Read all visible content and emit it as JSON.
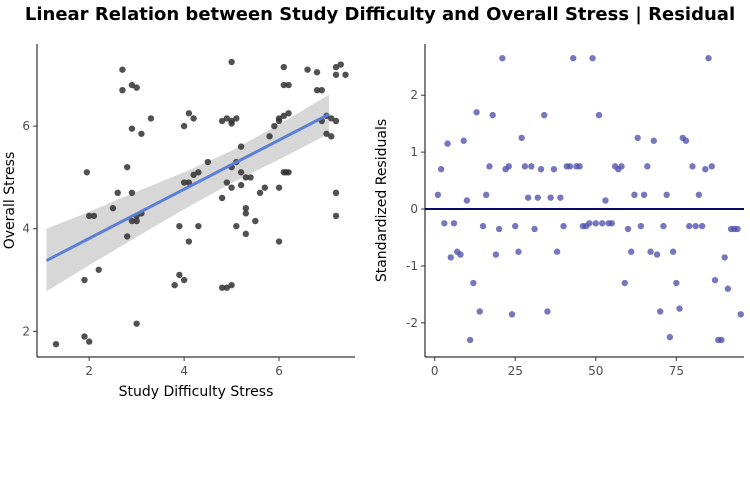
{
  "title": "Linear Relation between Study Difficulty and Overall Stress | Residual",
  "colors": {
    "points": "#333333",
    "fit_line": "#5b7fd6",
    "ci_band": "#d3d3d3",
    "residual_points": "#4a4aa8",
    "zero_line": "#0a0a6e",
    "axis": "#000000"
  },
  "chart_data": [
    {
      "type": "scatter",
      "xlabel": "Study Difficulty Stress",
      "ylabel": "Overall Stress",
      "xlim": [
        0.9,
        7.6
      ],
      "ylim": [
        1.5,
        7.6
      ],
      "xticks": [
        2,
        4,
        6
      ],
      "yticks": [
        2,
        4,
        6
      ],
      "grid": false,
      "points": [
        [
          1.3,
          1.75
        ],
        [
          1.9,
          1.9
        ],
        [
          2.0,
          1.8
        ],
        [
          1.9,
          3.0
        ],
        [
          2.2,
          3.2
        ],
        [
          2.0,
          4.25
        ],
        [
          2.1,
          4.25
        ],
        [
          1.95,
          5.1
        ],
        [
          2.5,
          4.4
        ],
        [
          2.6,
          4.7
        ],
        [
          3.0,
          4.15
        ],
        [
          2.8,
          3.85
        ],
        [
          2.9,
          4.15
        ],
        [
          3.0,
          4.25
        ],
        [
          3.1,
          4.3
        ],
        [
          2.9,
          4.7
        ],
        [
          2.8,
          5.2
        ],
        [
          2.7,
          6.7
        ],
        [
          2.9,
          6.8
        ],
        [
          3.0,
          6.75
        ],
        [
          2.7,
          7.1
        ],
        [
          2.9,
          5.95
        ],
        [
          3.1,
          5.85
        ],
        [
          3.3,
          6.15
        ],
        [
          3.0,
          2.15
        ],
        [
          3.8,
          2.9
        ],
        [
          3.9,
          3.1
        ],
        [
          4.1,
          3.75
        ],
        [
          4.0,
          3.0
        ],
        [
          3.9,
          4.05
        ],
        [
          4.0,
          4.9
        ],
        [
          4.1,
          4.9
        ],
        [
          4.3,
          4.05
        ],
        [
          4.3,
          5.1
        ],
        [
          4.0,
          6.0
        ],
        [
          4.1,
          6.25
        ],
        [
          4.2,
          6.15
        ],
        [
          4.2,
          5.05
        ],
        [
          4.5,
          5.3
        ],
        [
          4.8,
          2.85
        ],
        [
          4.9,
          2.85
        ],
        [
          5.0,
          2.9
        ],
        [
          4.8,
          4.6
        ],
        [
          4.9,
          4.9
        ],
        [
          5.0,
          5.2
        ],
        [
          5.0,
          4.8
        ],
        [
          5.1,
          4.05
        ],
        [
          5.2,
          4.85
        ],
        [
          5.3,
          5.0
        ],
        [
          5.2,
          5.1
        ],
        [
          5.4,
          5.0
        ],
        [
          5.1,
          5.3
        ],
        [
          5.2,
          5.6
        ],
        [
          5.3,
          4.4
        ],
        [
          5.3,
          4.3
        ],
        [
          5.3,
          3.9
        ],
        [
          5.5,
          4.15
        ],
        [
          4.8,
          6.1
        ],
        [
          4.9,
          6.15
        ],
        [
          5.0,
          6.1
        ],
        [
          5.1,
          6.15
        ],
        [
          5.0,
          6.05
        ],
        [
          5.0,
          7.25
        ],
        [
          5.6,
          4.7
        ],
        [
          5.7,
          4.8
        ],
        [
          5.8,
          5.8
        ],
        [
          5.9,
          6.0
        ],
        [
          6.0,
          6.1
        ],
        [
          6.0,
          6.15
        ],
        [
          6.1,
          6.2
        ],
        [
          6.2,
          6.25
        ],
        [
          6.1,
          5.1
        ],
        [
          6.15,
          5.1
        ],
        [
          6.2,
          5.1
        ],
        [
          6.0,
          4.8
        ],
        [
          6.0,
          3.75
        ],
        [
          6.1,
          6.8
        ],
        [
          6.2,
          6.8
        ],
        [
          6.1,
          7.15
        ],
        [
          6.6,
          7.1
        ],
        [
          6.8,
          7.05
        ],
        [
          6.8,
          6.7
        ],
        [
          6.9,
          6.7
        ],
        [
          6.9,
          6.1
        ],
        [
          7.0,
          6.2
        ],
        [
          7.1,
          6.15
        ],
        [
          7.2,
          6.1
        ],
        [
          7.2,
          7.15
        ],
        [
          7.3,
          7.2
        ],
        [
          7.2,
          7.0
        ],
        [
          7.4,
          7.0
        ],
        [
          7.0,
          5.85
        ],
        [
          7.1,
          5.8
        ],
        [
          7.2,
          4.25
        ],
        [
          7.2,
          4.7
        ]
      ],
      "fit": {
        "x": [
          1.1,
          7.05
        ],
        "y": [
          3.38,
          6.23
        ]
      },
      "ci_band": {
        "x": [
          1.1,
          2.0,
          3.0,
          4.0,
          5.0,
          6.0,
          7.05
        ],
        "upper": [
          4.0,
          4.33,
          4.72,
          5.1,
          5.52,
          6.03,
          6.61
        ],
        "lower": [
          2.78,
          3.29,
          3.84,
          4.38,
          4.89,
          5.35,
          5.85
        ]
      }
    },
    {
      "type": "scatter",
      "xlabel": "",
      "ylabel": "Standardized Residuals",
      "xlim": [
        -3,
        96
      ],
      "ylim": [
        -2.6,
        2.9
      ],
      "xticks": [
        0,
        25,
        50,
        75
      ],
      "yticks": [
        -2,
        -1,
        0,
        1,
        2
      ],
      "grid": false,
      "reference_line_y": 0,
      "points": [
        [
          1,
          0.25
        ],
        [
          2,
          0.7
        ],
        [
          3,
          -0.25
        ],
        [
          4,
          1.15
        ],
        [
          5,
          -0.85
        ],
        [
          6,
          -0.25
        ],
        [
          7,
          -0.75
        ],
        [
          8,
          -0.8
        ],
        [
          9,
          1.2
        ],
        [
          10,
          0.15
        ],
        [
          11,
          -2.3
        ],
        [
          12,
          -1.3
        ],
        [
          13,
          1.7
        ],
        [
          14,
          -1.8
        ],
        [
          15,
          -0.3
        ],
        [
          16,
          0.25
        ],
        [
          17,
          0.75
        ],
        [
          18,
          1.65
        ],
        [
          19,
          -0.8
        ],
        [
          20,
          -0.35
        ],
        [
          21,
          2.65
        ],
        [
          22,
          0.7
        ],
        [
          23,
          0.75
        ],
        [
          24,
          -1.85
        ],
        [
          25,
          -0.3
        ],
        [
          26,
          -0.75
        ],
        [
          27,
          1.25
        ],
        [
          28,
          0.75
        ],
        [
          29,
          0.2
        ],
        [
          30,
          0.75
        ],
        [
          31,
          -0.35
        ],
        [
          32,
          0.2
        ],
        [
          33,
          0.7
        ],
        [
          34,
          1.65
        ],
        [
          35,
          -1.8
        ],
        [
          36,
          0.2
        ],
        [
          37,
          0.7
        ],
        [
          38,
          -0.75
        ],
        [
          39,
          0.2
        ],
        [
          40,
          -0.3
        ],
        [
          41,
          0.75
        ],
        [
          42,
          0.75
        ],
        [
          43,
          2.65
        ],
        [
          44,
          0.75
        ],
        [
          45,
          0.75
        ],
        [
          46,
          -0.3
        ],
        [
          47,
          -0.3
        ],
        [
          48,
          -0.25
        ],
        [
          49,
          2.65
        ],
        [
          50,
          -0.25
        ],
        [
          51,
          1.65
        ],
        [
          52,
          -0.25
        ],
        [
          53,
          0.15
        ],
        [
          54,
          -0.25
        ],
        [
          55,
          -0.25
        ],
        [
          56,
          0.75
        ],
        [
          57,
          0.7
        ],
        [
          58,
          0.75
        ],
        [
          59,
          -1.3
        ],
        [
          60,
          -0.35
        ],
        [
          61,
          -0.75
        ],
        [
          62,
          0.25
        ],
        [
          63,
          1.25
        ],
        [
          64,
          -0.3
        ],
        [
          65,
          0.25
        ],
        [
          66,
          0.75
        ],
        [
          67,
          -0.75
        ],
        [
          68,
          1.2
        ],
        [
          69,
          -0.8
        ],
        [
          70,
          -1.8
        ],
        [
          71,
          -0.3
        ],
        [
          72,
          0.25
        ],
        [
          73,
          -2.25
        ],
        [
          74,
          -0.75
        ],
        [
          75,
          -1.3
        ],
        [
          76,
          -1.75
        ],
        [
          77,
          1.25
        ],
        [
          78,
          1.2
        ],
        [
          79,
          -0.3
        ],
        [
          80,
          0.75
        ],
        [
          81,
          -0.3
        ],
        [
          82,
          0.25
        ],
        [
          83,
          -0.3
        ],
        [
          84,
          0.7
        ],
        [
          85,
          2.65
        ],
        [
          86,
          0.75
        ],
        [
          87,
          -1.25
        ],
        [
          88,
          -2.3
        ],
        [
          89,
          -2.3
        ],
        [
          90,
          -0.85
        ],
        [
          91,
          -1.4
        ],
        [
          92,
          -0.35
        ],
        [
          93,
          -0.35
        ],
        [
          94,
          -0.35
        ],
        [
          95,
          -1.85
        ]
      ]
    }
  ]
}
